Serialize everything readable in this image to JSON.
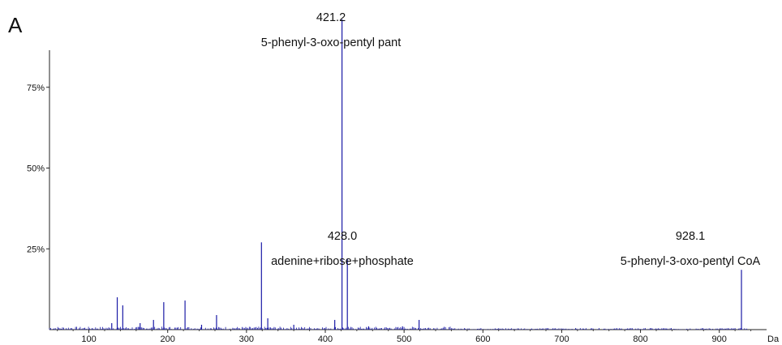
{
  "panel_label": "A",
  "chart_data": {
    "type": "bar",
    "x_unit_label": "Da",
    "xlim": [
      50,
      960
    ],
    "ylim": [
      0,
      100
    ],
    "x_ticks": [
      100,
      200,
      300,
      400,
      500,
      600,
      700,
      800,
      900
    ],
    "y_ticks": [
      {
        "value": 25,
        "label": "25%"
      },
      {
        "value": 50,
        "label": "50%"
      },
      {
        "value": 75,
        "label": "75%"
      }
    ],
    "line_color": "#1a1aa6",
    "peaks": [
      {
        "mz": 421.2,
        "intensity": 96
      },
      {
        "mz": 428.0,
        "intensity": 22
      },
      {
        "mz": 928.1,
        "intensity": 18.5
      },
      {
        "mz": 319.0,
        "intensity": 27
      },
      {
        "mz": 136.0,
        "intensity": 10
      },
      {
        "mz": 143.0,
        "intensity": 7.5
      },
      {
        "mz": 195.0,
        "intensity": 8.5
      },
      {
        "mz": 222.0,
        "intensity": 9
      },
      {
        "mz": 262.0,
        "intensity": 4.5
      },
      {
        "mz": 182.0,
        "intensity": 3
      },
      {
        "mz": 165.0,
        "intensity": 2
      },
      {
        "mz": 129.0,
        "intensity": 2
      },
      {
        "mz": 327.0,
        "intensity": 3.5
      },
      {
        "mz": 412.0,
        "intensity": 3
      },
      {
        "mz": 519.0,
        "intensity": 3
      },
      {
        "mz": 360.0,
        "intensity": 1.5
      },
      {
        "mz": 243.0,
        "intensity": 1.5
      },
      {
        "mz": 455.0,
        "intensity": 1
      },
      {
        "mz": 498.0,
        "intensity": 1
      }
    ],
    "annotations": [
      {
        "mz_label": "421.2",
        "name": "5-phenyl-3-oxo-pentyl pant"
      },
      {
        "mz_label": "428.0",
        "name": "adenine+ribose+phosphate"
      },
      {
        "mz_label": "928.1",
        "name": "5-phenyl-3-oxo-pentyl CoA"
      }
    ]
  }
}
